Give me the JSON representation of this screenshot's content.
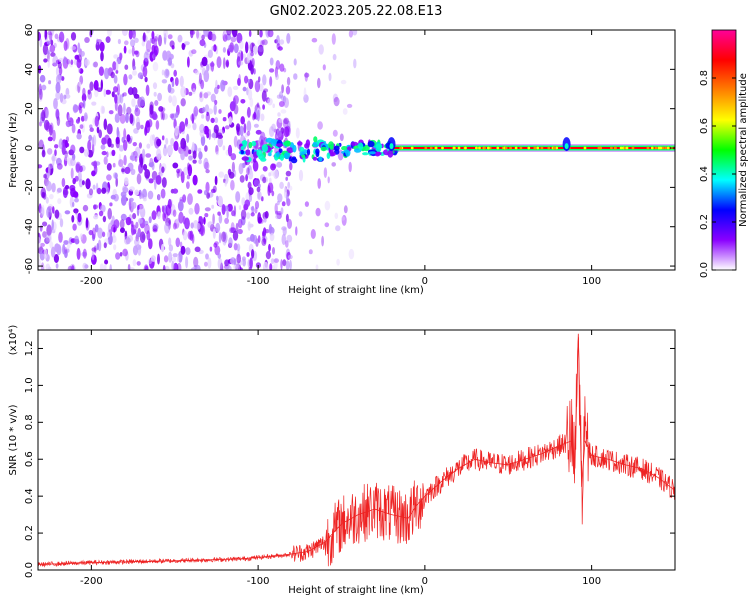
{
  "title": "GN02.2023.205.22.08.E13",
  "chart_data": [
    {
      "type": "heatmap",
      "xlabel": "Height of straight line (km)",
      "ylabel": "Frequency (Hz)",
      "xlim": [
        -232,
        150
      ],
      "ylim": [
        -62,
        60
      ],
      "xticks": [
        -200,
        -100,
        0,
        100
      ],
      "yticks": [
        -60,
        -40,
        -20,
        0,
        20,
        40,
        60
      ],
      "colorbar": {
        "label": "Normalized spectral amplitude",
        "range": [
          0,
          1
        ],
        "ticks": [
          "0.0",
          "0.2",
          "0.4",
          "0.6",
          "0.8"
        ],
        "colormap": [
          "#ffffff",
          "#8a00ff",
          "#0000ff",
          "#00ffff",
          "#00ff00",
          "#ffff00",
          "#ff7f00",
          "#ff0000",
          "#ff0099"
        ]
      },
      "features": {
        "noise_region_x": [
          -232,
          -65
        ],
        "signal_line_frequency_hz": 0,
        "signal_onset_x": -110,
        "peak_bursts_x": [
          -20,
          85
        ]
      }
    },
    {
      "type": "line",
      "xlabel": "Height of straight line (km)",
      "ylabel": "SNR (10 * v/v)",
      "yscale_label": "(x10⁴)",
      "xlim": [
        -232,
        150
      ],
      "ylim": [
        0,
        1.3
      ],
      "xticks": [
        -200,
        -100,
        0,
        100
      ],
      "yticks": [
        "0.0",
        "0.2",
        "0.4",
        "0.6",
        "0.8",
        "1.0",
        "1.2"
      ],
      "series": [
        {
          "color": "#ee2222",
          "x": [
            -232,
            -200,
            -150,
            -110,
            -85,
            -70,
            -60,
            -50,
            -40,
            -30,
            -20,
            -10,
            -5,
            0,
            10,
            20,
            30,
            40,
            50,
            60,
            70,
            80,
            88,
            90,
            92,
            94,
            96,
            100,
            110,
            120,
            130,
            140,
            150
          ],
          "y": [
            0.03,
            0.04,
            0.05,
            0.06,
            0.08,
            0.1,
            0.15,
            0.25,
            0.3,
            0.33,
            0.3,
            0.28,
            0.35,
            0.4,
            0.48,
            0.55,
            0.6,
            0.58,
            0.57,
            0.6,
            0.63,
            0.67,
            0.7,
            0.55,
            1.28,
            0.45,
            0.7,
            0.62,
            0.6,
            0.57,
            0.55,
            0.5,
            0.43
          ]
        }
      ]
    }
  ]
}
